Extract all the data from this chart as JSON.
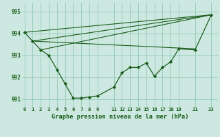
{
  "background_color": "#cce8e0",
  "grid_color": "#99ccbb",
  "line_color": "#1a5c1a",
  "ylabel_ticks": [
    991,
    992,
    993,
    994,
    995
  ],
  "xlabel_ticks": [
    0,
    1,
    2,
    3,
    4,
    5,
    6,
    7,
    8,
    9,
    11,
    12,
    13,
    14,
    15,
    16,
    17,
    18,
    19,
    21,
    23
  ],
  "xlabel_label": "Graphe pression niveau de la mer (hPa)",
  "series_main_x": [
    0,
    1,
    2,
    3,
    4,
    5,
    6,
    7,
    8,
    9,
    11,
    12,
    13,
    14,
    15,
    16,
    17,
    18,
    19,
    21,
    23
  ],
  "series_main_y": [
    994.05,
    993.65,
    993.25,
    993.0,
    992.35,
    991.7,
    991.05,
    991.05,
    991.1,
    991.15,
    991.55,
    992.2,
    992.45,
    992.45,
    992.65,
    992.05,
    992.45,
    992.7,
    993.3,
    993.25,
    994.85
  ],
  "trend1_x": [
    0,
    23
  ],
  "trend1_y": [
    994.05,
    994.85
  ],
  "trend2_x": [
    1,
    23
  ],
  "trend2_y": [
    993.65,
    994.85
  ],
  "trend3_x": [
    2,
    23
  ],
  "trend3_y": [
    993.25,
    994.85
  ],
  "trend4_x": [
    1,
    21
  ],
  "trend4_y": [
    993.65,
    993.3
  ],
  "ylim": [
    990.65,
    995.4
  ],
  "xlim": [
    -0.3,
    23.8
  ]
}
